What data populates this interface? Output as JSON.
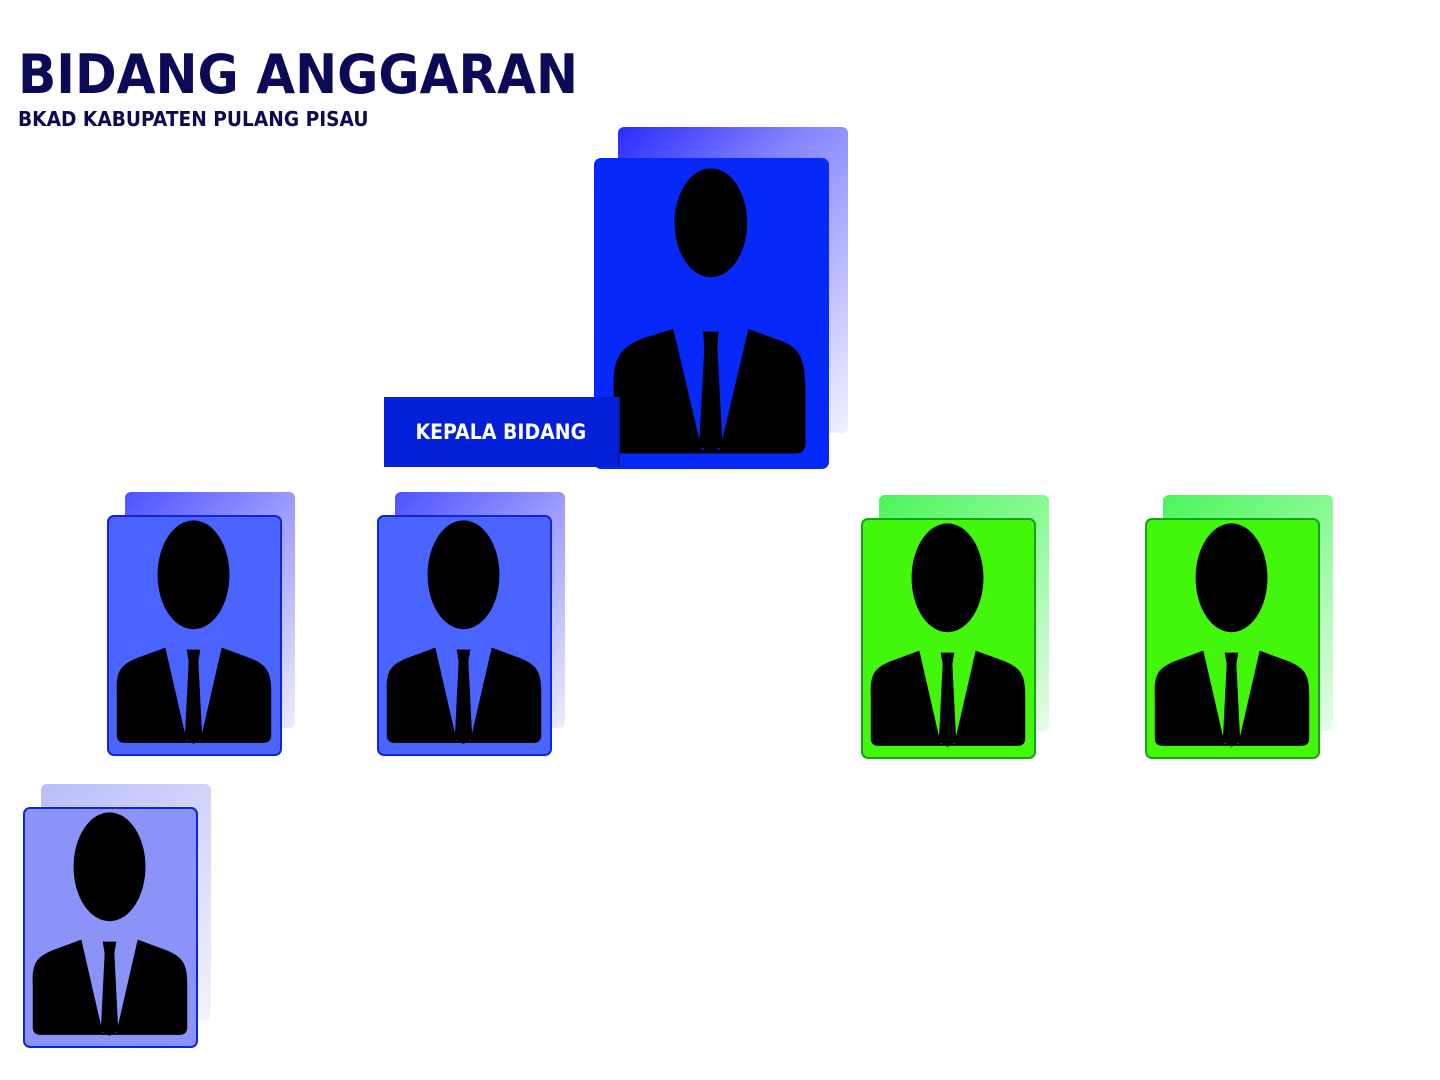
{
  "header": {
    "title": "BIDANG ANGGARAN",
    "subtitle": "BKAD KABUPATEN PULANG PISAU"
  },
  "head_position": {
    "label": "KEPALA BIDANG"
  },
  "colors": {
    "title": "#0a0a57",
    "head_card": "#0629fa",
    "label_box": "#0320d6",
    "staff_blue": "#4b63ff",
    "staff_light_blue": "#8a93f8",
    "staff_green": "#43f70c",
    "silhouette": "#000000"
  },
  "icons": {
    "person": "person-silhouette-icon"
  }
}
